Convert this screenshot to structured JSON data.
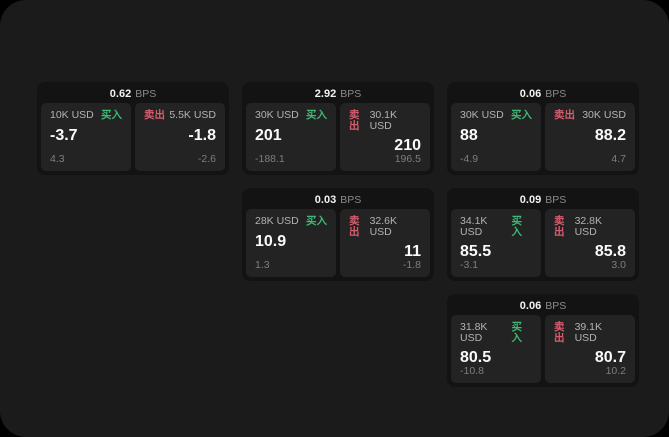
{
  "labels": {
    "bps_unit": "BPS",
    "buy": "买入",
    "sell": "卖出"
  },
  "colors": {
    "buy": "#3eb874",
    "sell": "#d85c6e",
    "surface": "#1b1b1b",
    "card": "#131313",
    "panel": "#232323"
  },
  "cards": [
    {
      "bps": "0.62",
      "buy": {
        "amount": "10K USD",
        "value": "-3.7",
        "sub": "4.3"
      },
      "sell": {
        "amount": "5.5K USD",
        "value": "-1.8",
        "sub": "-2.6"
      }
    },
    {
      "bps": "2.92",
      "buy": {
        "amount": "30K USD",
        "value": "201",
        "sub": "-188.1"
      },
      "sell": {
        "amount": "30.1K USD",
        "value": "210",
        "sub": "196.5"
      }
    },
    {
      "bps": "0.06",
      "buy": {
        "amount": "30K USD",
        "value": "88",
        "sub": "-4.9"
      },
      "sell": {
        "amount": "30K USD",
        "value": "88.2",
        "sub": "4.7"
      }
    },
    {
      "bps": "0.03",
      "buy": {
        "amount": "28K USD",
        "value": "10.9",
        "sub": "1.3"
      },
      "sell": {
        "amount": "32.6K USD",
        "value": "11",
        "sub": "-1.8"
      }
    },
    {
      "bps": "0.09",
      "buy": {
        "amount": "34.1K USD",
        "value": "85.5",
        "sub": "-3.1"
      },
      "sell": {
        "amount": "32.8K USD",
        "value": "85.8",
        "sub": "3.0"
      }
    },
    {
      "bps": "0.06",
      "buy": {
        "amount": "31.8K USD",
        "value": "80.5",
        "sub": "-10.8"
      },
      "sell": {
        "amount": "39.1K USD",
        "value": "80.7",
        "sub": "10.2"
      }
    }
  ]
}
